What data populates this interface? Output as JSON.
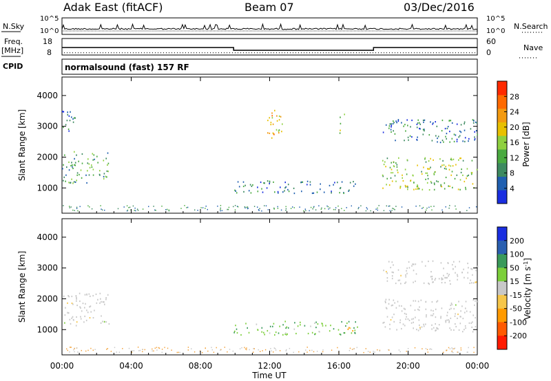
{
  "header": {
    "station": "Adak East (fitACF)",
    "beam": "Beam 07",
    "date": "03/Dec/2016"
  },
  "side_labels": {
    "nsky": "N.Sky",
    "freq_top": "Freq.",
    "freq_unit": "[MHz]",
    "cpid": "CPID",
    "nsearch": "N.Search",
    "nave": "Nave"
  },
  "cpid_text": "normalsound (fast) 157 RF",
  "colors": {
    "power": [
      "#1a2ee0",
      "#1f5fb0",
      "#3d8a60",
      "#4aaa40",
      "#8fd040",
      "#e8c000",
      "#f39a10",
      "#ff6a00",
      "#ff2a00"
    ],
    "velocity": [
      "#ff1a00",
      "#ff5a00",
      "#ff9a00",
      "#f6c64a",
      "#c8c8c8",
      "#7ccf3a",
      "#3a9a5a",
      "#2a5fb0",
      "#1a2ee0"
    ],
    "ground": "#c8c8c8"
  },
  "chart_data": [
    {
      "type": "line",
      "title": "N.Sky / N.Search",
      "yticks_left": [
        "10^5",
        "10^0"
      ],
      "yticks_right": [
        "10^5",
        "10^0"
      ],
      "note": "near-zero counts across the day with sporadic small spikes"
    },
    {
      "type": "line",
      "title": "Freq. [MHz] / Nave",
      "left_axis": {
        "ticks": [
          18,
          8
        ]
      },
      "right_axis": {
        "ticks": [
          60,
          0
        ]
      },
      "freq_series": [
        {
          "x": "00:00",
          "y": 13.0
        },
        {
          "x": "09:55",
          "y": 13.0
        },
        {
          "x": "09:55",
          "y": 10.8
        },
        {
          "x": "18:00",
          "y": 10.8
        },
        {
          "x": "18:00",
          "y": 13.0
        },
        {
          "x": "24:00",
          "y": 13.0
        }
      ],
      "nave_level": 9
    },
    {
      "type": "heatmap",
      "variable": "Power",
      "ylabel": "Slant Range [km]",
      "yticks": [
        1000,
        2000,
        3000,
        4000
      ],
      "ylim": [
        180,
        4600
      ],
      "xlim": [
        0,
        24
      ],
      "colorbar": {
        "label": "Power [dB]",
        "ticks": [
          4,
          8,
          12,
          16,
          20,
          24,
          28
        ],
        "range": [
          0,
          32
        ]
      },
      "regions": [
        {
          "t0": 0.0,
          "t1": 2.7,
          "r0": 1150,
          "r1": 2200,
          "value": 12
        },
        {
          "t0": 0.0,
          "t1": 0.8,
          "r0": 2850,
          "r1": 3550,
          "value": 7
        },
        {
          "t0": 9.9,
          "t1": 17.1,
          "r0": 850,
          "r1": 1250,
          "value": 7
        },
        {
          "t0": 11.8,
          "t1": 12.7,
          "r0": 2500,
          "r1": 3550,
          "value": 20
        },
        {
          "t0": 16.0,
          "t1": 16.3,
          "r0": 2800,
          "r1": 3500,
          "value": 14
        },
        {
          "t0": 18.5,
          "t1": 24.0,
          "r0": 950,
          "r1": 2000,
          "value": 15
        },
        {
          "t0": 18.5,
          "t1": 24.0,
          "r0": 2500,
          "r1": 3250,
          "value": 7
        }
      ]
    },
    {
      "type": "heatmap",
      "variable": "Velocity",
      "ylabel": "Slant Range [km]",
      "yticks": [
        1000,
        2000,
        3000,
        4000
      ],
      "ylim": [
        180,
        4600
      ],
      "xlim": [
        0,
        24
      ],
      "colorbar": {
        "label": "Velocity [m s^-1]",
        "ticks": [
          200,
          100,
          50,
          15,
          -15,
          -50,
          -100,
          -200
        ]
      },
      "regions": [
        {
          "t0": 0.0,
          "t1": 2.7,
          "r0": 1150,
          "r1": 2200,
          "value": 0,
          "ground": true
        },
        {
          "t0": 9.9,
          "t1": 17.1,
          "r0": 850,
          "r1": 1300,
          "value": 40
        },
        {
          "t0": 16.3,
          "t1": 17.0,
          "r0": 900,
          "r1": 1150,
          "value": -60
        },
        {
          "t0": 18.5,
          "t1": 24.0,
          "r0": 950,
          "r1": 2000,
          "value": 0,
          "ground": true
        },
        {
          "t0": 18.5,
          "t1": 24.0,
          "r0": 2500,
          "r1": 3250,
          "value": 0,
          "ground": true
        }
      ]
    }
  ],
  "xaxis": {
    "ticks": [
      "00:00",
      "04:00",
      "08:00",
      "12:00",
      "16:00",
      "20:00",
      "00:00"
    ],
    "label": "Time UT"
  }
}
